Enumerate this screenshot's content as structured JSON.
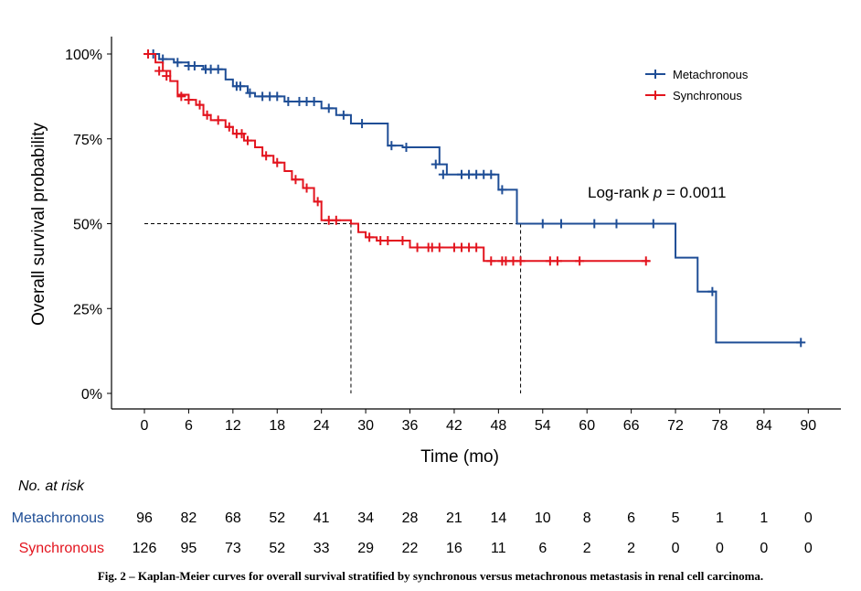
{
  "chart_data": {
    "type": "line",
    "subtype": "kaplan-meier step",
    "xlabel": "Time (mo)",
    "ylabel": "Overall survival probability",
    "xlim": [
      0,
      90
    ],
    "ylim": [
      0,
      1
    ],
    "x_ticks": [
      "0",
      "6",
      "12",
      "18",
      "24",
      "30",
      "36",
      "42",
      "48",
      "54",
      "60",
      "66",
      "72",
      "78",
      "84",
      "90"
    ],
    "y_ticks": [
      "0%",
      "25%",
      "50%",
      "75%",
      "100%"
    ],
    "grid": false,
    "legend_position": "top-right",
    "annotation": {
      "prefix": "Log-rank ",
      "p": "p",
      "suffix": " = 0.0011"
    },
    "median_reference": {
      "y": 0.5,
      "medians_x": [
        28,
        51
      ]
    },
    "series": [
      {
        "name": "Metachronous",
        "color": "#1f4e96",
        "steps": [
          [
            0,
            1.0
          ],
          [
            2,
            0.985
          ],
          [
            4,
            0.975
          ],
          [
            6,
            0.965
          ],
          [
            8,
            0.955
          ],
          [
            11,
            0.925
          ],
          [
            12,
            0.905
          ],
          [
            14,
            0.885
          ],
          [
            15,
            0.875
          ],
          [
            19,
            0.86
          ],
          [
            24,
            0.84
          ],
          [
            26,
            0.82
          ],
          [
            28,
            0.795
          ],
          [
            33,
            0.73
          ],
          [
            35,
            0.725
          ],
          [
            40,
            0.675
          ],
          [
            41,
            0.645
          ],
          [
            48,
            0.6
          ],
          [
            50.5,
            0.5
          ],
          [
            72,
            0.4
          ],
          [
            75,
            0.3
          ],
          [
            77.5,
            0.15
          ],
          [
            89,
            0.15
          ]
        ],
        "censors": [
          [
            1.2,
            1.0
          ],
          [
            2.5,
            0.985
          ],
          [
            4.5,
            0.975
          ],
          [
            6,
            0.965
          ],
          [
            6.8,
            0.965
          ],
          [
            8.3,
            0.955
          ],
          [
            9,
            0.955
          ],
          [
            10,
            0.955
          ],
          [
            12.5,
            0.905
          ],
          [
            13,
            0.905
          ],
          [
            14.3,
            0.885
          ],
          [
            16,
            0.875
          ],
          [
            17,
            0.875
          ],
          [
            18,
            0.875
          ],
          [
            19.5,
            0.86
          ],
          [
            21,
            0.86
          ],
          [
            22,
            0.86
          ],
          [
            23,
            0.86
          ],
          [
            25,
            0.84
          ],
          [
            27,
            0.82
          ],
          [
            29.5,
            0.795
          ],
          [
            33.5,
            0.73
          ],
          [
            35.5,
            0.725
          ],
          [
            39.5,
            0.675
          ],
          [
            40.5,
            0.645
          ],
          [
            43,
            0.645
          ],
          [
            44,
            0.645
          ],
          [
            45,
            0.645
          ],
          [
            46,
            0.645
          ],
          [
            47,
            0.645
          ],
          [
            48.5,
            0.6
          ],
          [
            54,
            0.5
          ],
          [
            56.5,
            0.5
          ],
          [
            61,
            0.5
          ],
          [
            64,
            0.5
          ],
          [
            69,
            0.5
          ],
          [
            77,
            0.3
          ],
          [
            89,
            0.15
          ]
        ]
      },
      {
        "name": "Synchronous",
        "color": "#e3141e",
        "steps": [
          [
            0,
            1.0
          ],
          [
            1.5,
            0.975
          ],
          [
            2.5,
            0.95
          ],
          [
            3.5,
            0.92
          ],
          [
            4.5,
            0.88
          ],
          [
            6,
            0.865
          ],
          [
            7,
            0.85
          ],
          [
            8,
            0.82
          ],
          [
            9,
            0.805
          ],
          [
            11,
            0.785
          ],
          [
            12,
            0.765
          ],
          [
            13.5,
            0.745
          ],
          [
            15,
            0.725
          ],
          [
            16,
            0.7
          ],
          [
            17.5,
            0.68
          ],
          [
            19,
            0.655
          ],
          [
            20,
            0.63
          ],
          [
            21.5,
            0.605
          ],
          [
            23,
            0.565
          ],
          [
            24,
            0.51
          ],
          [
            28,
            0.5
          ],
          [
            29,
            0.475
          ],
          [
            30,
            0.46
          ],
          [
            31.5,
            0.45
          ],
          [
            36,
            0.43
          ],
          [
            46,
            0.39
          ],
          [
            68.5,
            0.39
          ]
        ],
        "censors": [
          [
            0.5,
            1.0
          ],
          [
            2,
            0.95
          ],
          [
            3,
            0.935
          ],
          [
            5,
            0.875
          ],
          [
            6,
            0.865
          ],
          [
            7.5,
            0.85
          ],
          [
            8.5,
            0.82
          ],
          [
            10,
            0.805
          ],
          [
            11.5,
            0.785
          ],
          [
            12.5,
            0.765
          ],
          [
            13.2,
            0.765
          ],
          [
            14,
            0.745
          ],
          [
            16.5,
            0.7
          ],
          [
            18,
            0.68
          ],
          [
            20.5,
            0.63
          ],
          [
            22,
            0.605
          ],
          [
            23.5,
            0.565
          ],
          [
            25,
            0.51
          ],
          [
            26,
            0.51
          ],
          [
            30.5,
            0.46
          ],
          [
            32,
            0.45
          ],
          [
            33,
            0.45
          ],
          [
            35,
            0.45
          ],
          [
            37,
            0.43
          ],
          [
            38.5,
            0.43
          ],
          [
            39,
            0.43
          ],
          [
            40,
            0.43
          ],
          [
            42,
            0.43
          ],
          [
            43,
            0.43
          ],
          [
            44,
            0.43
          ],
          [
            45,
            0.43
          ],
          [
            47,
            0.39
          ],
          [
            48.5,
            0.39
          ],
          [
            49,
            0.39
          ],
          [
            50,
            0.39
          ],
          [
            51,
            0.39
          ],
          [
            55,
            0.39
          ],
          [
            56,
            0.39
          ],
          [
            59,
            0.39
          ],
          [
            68,
            0.39
          ]
        ]
      }
    ]
  },
  "risk_table": {
    "title": "No. at risk",
    "times": [
      0,
      6,
      12,
      18,
      24,
      30,
      36,
      42,
      48,
      54,
      60,
      66,
      72,
      78,
      84,
      90
    ],
    "rows": [
      {
        "name": "Metachronous",
        "color": "#1f4e96",
        "values": [
          "96",
          "82",
          "68",
          "52",
          "41",
          "34",
          "28",
          "21",
          "14",
          "10",
          "8",
          "6",
          "5",
          "1",
          "1",
          "0"
        ]
      },
      {
        "name": "Synchronous",
        "color": "#e3141e",
        "values": [
          "126",
          "95",
          "73",
          "52",
          "33",
          "29",
          "22",
          "16",
          "11",
          "6",
          "2",
          "2",
          "0",
          "0",
          "0",
          "0"
        ]
      }
    ]
  },
  "caption": "Fig. 2 – Kaplan-Meier curves for overall survival stratified by synchronous versus metachronous metastasis in renal cell carcinoma."
}
